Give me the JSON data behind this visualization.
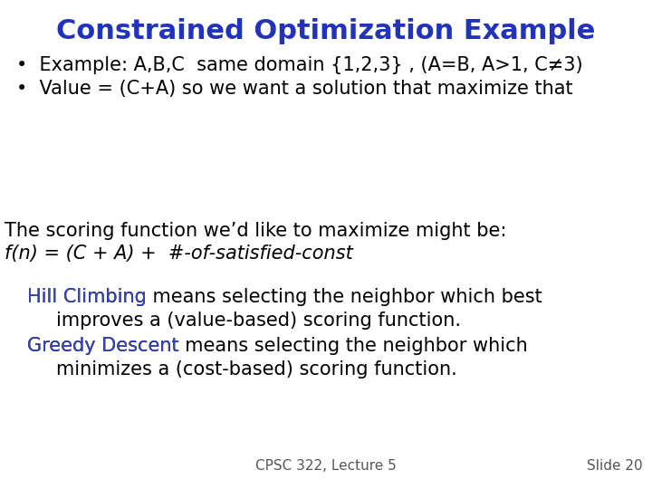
{
  "title": "Constrained Optimization Example",
  "title_color": "#2233BB",
  "title_fontsize": 22,
  "background_color": "#FFFFFF",
  "bullet1": "Example: A,B,C  same domain {1,2,3} , (A=B, A>1, C≠3)",
  "bullet2": "Value = (C+A) so we want a solution that maximize that",
  "bullet_fontsize": 15,
  "bullet_color": "#000000",
  "scoring_line1": "The scoring function we’d like to maximize might be:",
  "scoring_line2": "f(n) = (C + A) +  #-of-satisfied-const",
  "scoring_fontsize": 15,
  "scoring_color": "#000000",
  "hill_label": "Hill Climbing",
  "hill_label_color": "#3344BB",
  "hill_rest": " means selecting the neighbor which best",
  "hill_line2": "improves a (value-based) scoring function.",
  "greedy_label": "Greedy Descent",
  "greedy_label_color": "#3344BB",
  "greedy_rest": " means selecting the neighbor which",
  "greedy_line2": "minimizes a (cost-based) scoring function.",
  "para_fontsize": 15,
  "para_color": "#000000",
  "footer_left": "CPSC 322, Lecture 5",
  "footer_right": "Slide 20",
  "footer_fontsize": 11,
  "footer_color": "#555555"
}
